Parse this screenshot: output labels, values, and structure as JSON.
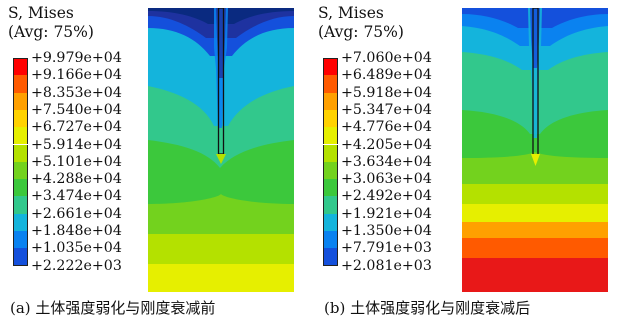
{
  "panels": [
    {
      "title_line1": "S, Mises",
      "title_line2": "(Avg: 75%)",
      "legend_values": [
        "+9.979e+04",
        "+9.166e+04",
        "+8.353e+04",
        "+7.540e+04",
        "+6.727e+04",
        "+5.914e+04",
        "+5.101e+04",
        "+4.288e+04",
        "+3.474e+04",
        "+2.661e+04",
        "+1.848e+04",
        "+1.035e+04",
        "+2.222e+03"
      ],
      "caption": "(a) 土体强度弱化与刚度衰减前"
    },
    {
      "title_line1": "S, Mises",
      "title_line2": "(Avg: 75%)",
      "legend_values": [
        "+7.060e+04",
        "+6.489e+04",
        "+5.918e+04",
        "+5.347e+04",
        "+4.776e+04",
        "+4.205e+04",
        "+3.634e+04",
        "+3.063e+04",
        "+2.492e+04",
        "+1.921e+04",
        "+1.350e+04",
        "+7.791e+03",
        "+2.081e+03"
      ],
      "caption": "(b) 土体强度弱化与刚度衰减后"
    }
  ],
  "colors": {
    "legend": [
      "#ff0000",
      "#ff5a00",
      "#ffa000",
      "#ffd200",
      "#e6ef00",
      "#b4e100",
      "#73d21e",
      "#3cc83c",
      "#32c88c",
      "#14b4dc",
      "#0a82f0",
      "#1450dc",
      "#1e32a0"
    ]
  }
}
